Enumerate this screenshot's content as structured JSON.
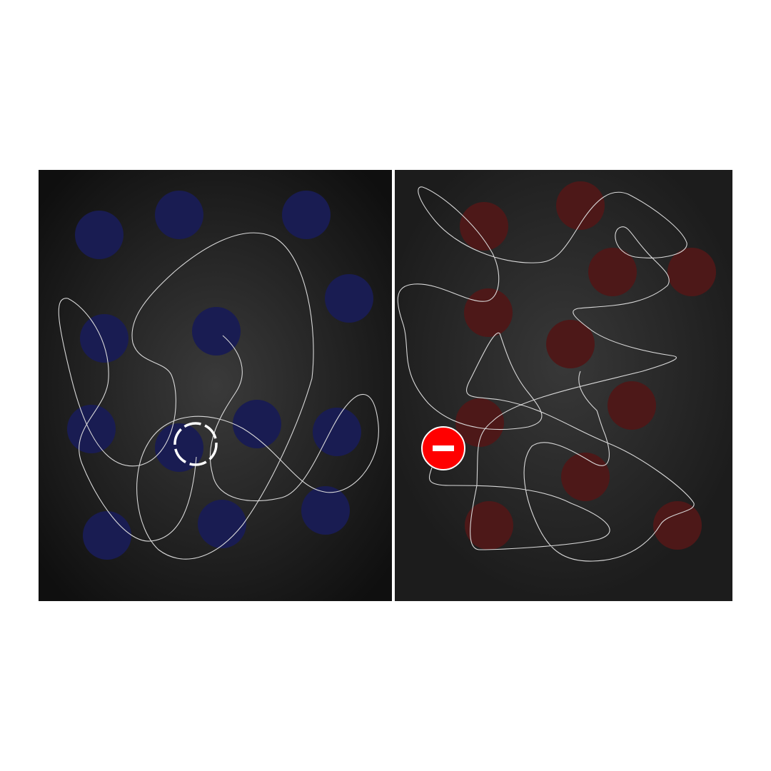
{
  "game": {
    "panels": [
      {
        "id": "left",
        "theme": "blue",
        "target_color": "#191c52",
        "targets": [
          "t1",
          "t2",
          "t3",
          "t4",
          "t5",
          "t6",
          "t7",
          "t8",
          "t9",
          "t10",
          "t11",
          "t12",
          "t13",
          "t14",
          "t15"
        ]
      },
      {
        "id": "right",
        "theme": "red",
        "target_color": "#4d1818",
        "targets": [
          "t1",
          "t2",
          "t3",
          "t4",
          "t5",
          "t6",
          "t7",
          "t8",
          "t9",
          "t10",
          "t11",
          "t12"
        ]
      }
    ],
    "cursor_marker": {
      "icon": "dashed-ring-icon",
      "color": "#ffffff"
    },
    "blocked_marker": {
      "icon": "no-entry-icon",
      "color": "#ff0000"
    },
    "colors": {
      "panel_center": "#3a3a3a",
      "panel_edge": "#101010",
      "divider": "#ffffff",
      "trail": "#d9d9d9"
    }
  }
}
